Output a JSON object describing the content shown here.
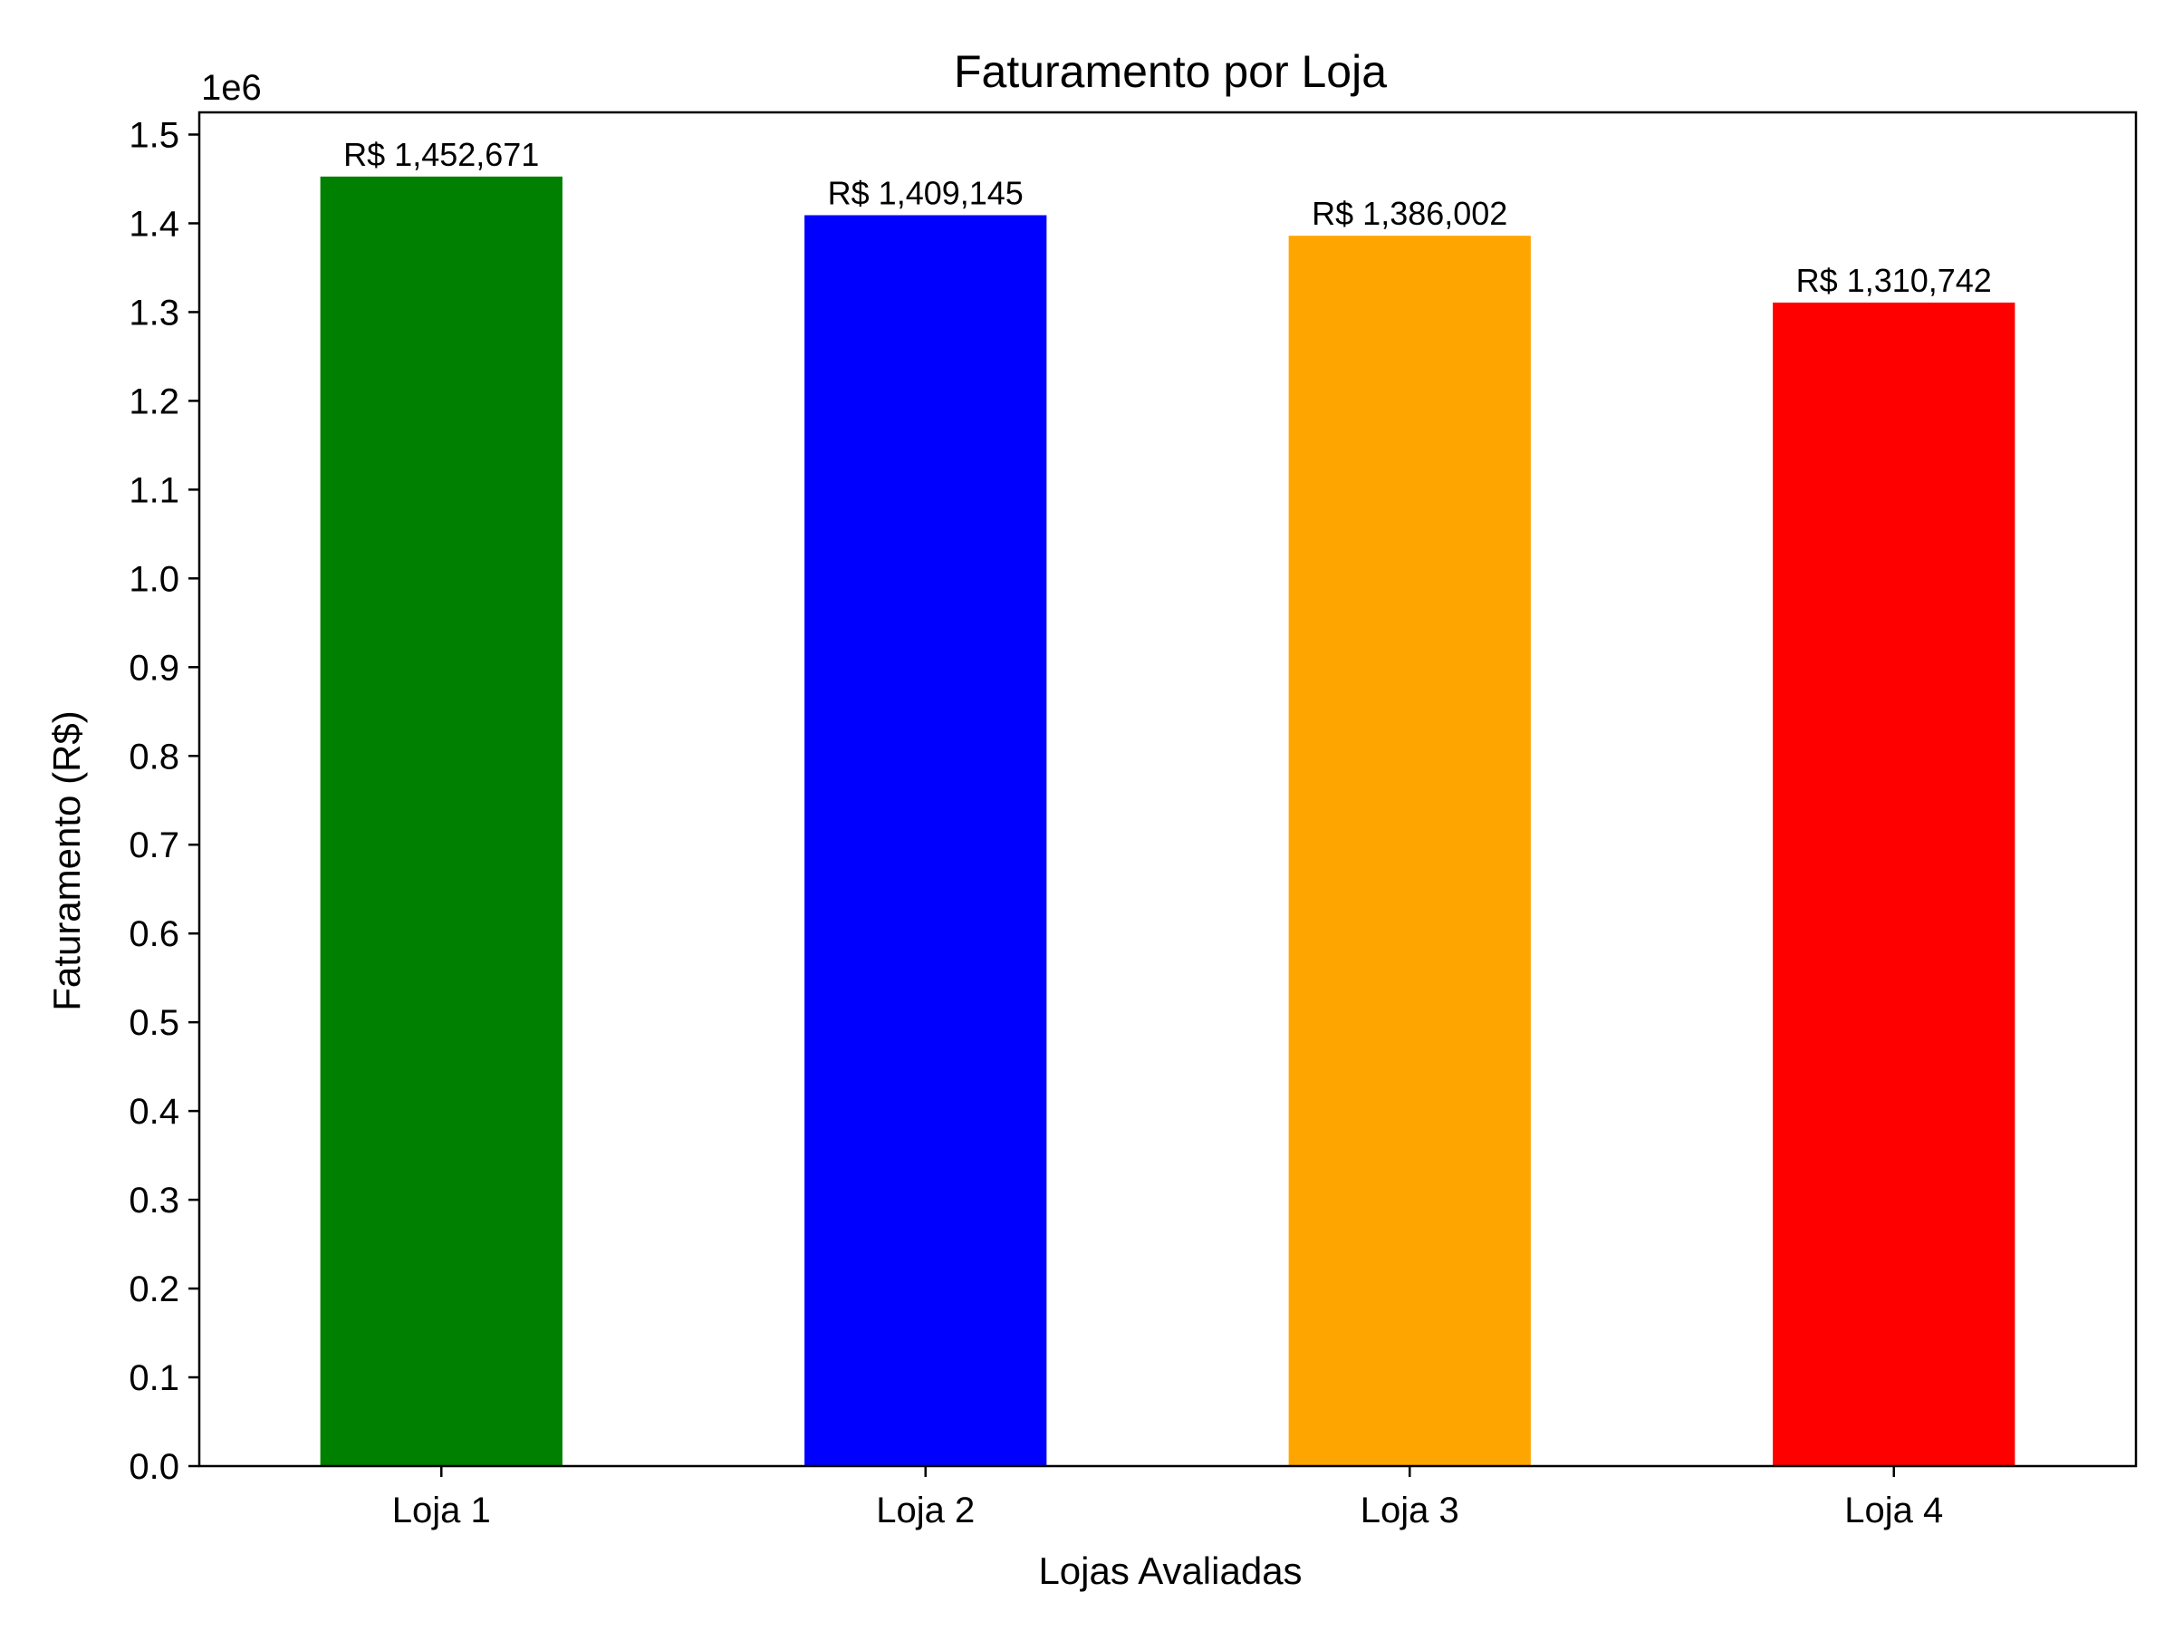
{
  "chart_data": {
    "type": "bar",
    "title": "Faturamento por Loja",
    "xlabel": "Lojas Avaliadas",
    "ylabel": "Faturamento (R$)",
    "y_offset_label": "1e6",
    "categories": [
      "Loja 1",
      "Loja 2",
      "Loja 3",
      "Loja 4"
    ],
    "values": [
      1452671,
      1409145,
      1386002,
      1310742
    ],
    "data_labels": [
      "R$ 1,452,671",
      "R$ 1,409,145",
      "R$ 1,386,002",
      "R$ 1,310,742"
    ],
    "colors": [
      "#008000",
      "#0000ff",
      "#ffa500",
      "#ff0000"
    ],
    "ylim": [
      0,
      1525000
    ],
    "yticks": [
      0,
      100000,
      200000,
      300000,
      400000,
      500000,
      600000,
      700000,
      800000,
      900000,
      1000000,
      1100000,
      1200000,
      1300000,
      1400000,
      1500000
    ],
    "ytick_labels": [
      "0.0",
      "0.1",
      "0.2",
      "0.3",
      "0.4",
      "0.5",
      "0.6",
      "0.7",
      "0.8",
      "0.9",
      "1.0",
      "1.1",
      "1.2",
      "1.3",
      "1.4",
      "1.5"
    ],
    "grid": false,
    "legend": "none"
  }
}
